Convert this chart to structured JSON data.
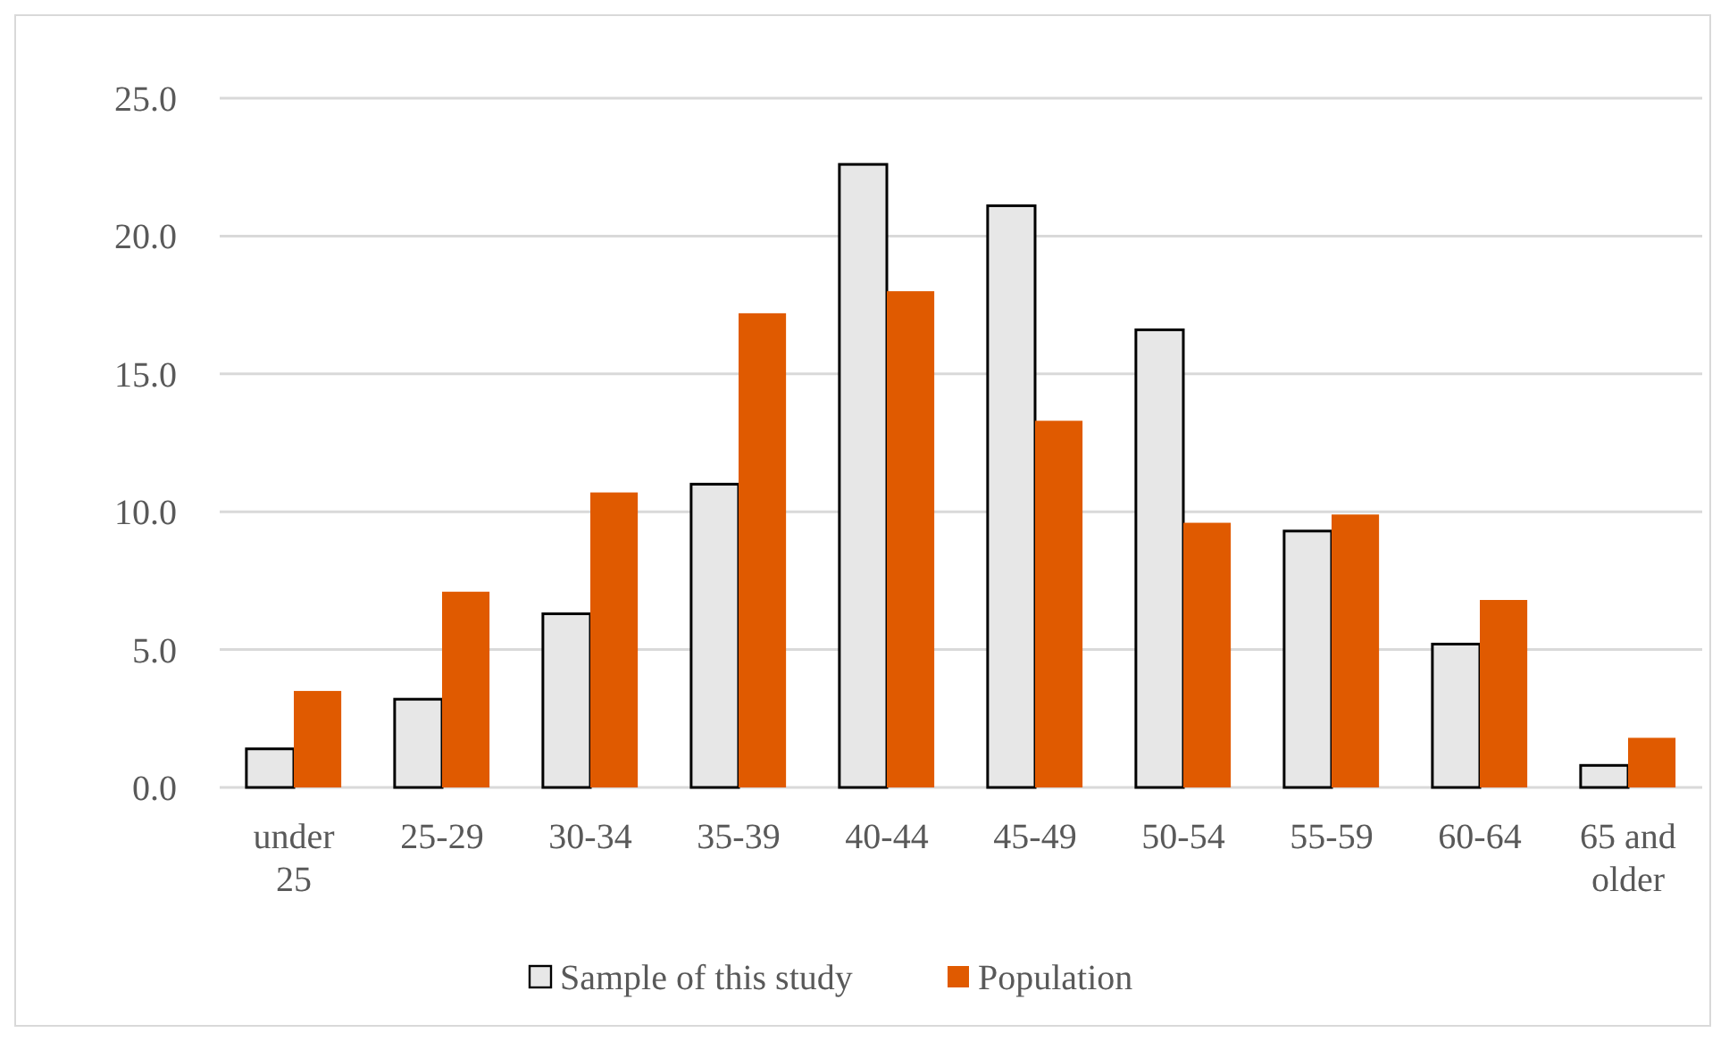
{
  "chart_data": {
    "type": "bar",
    "categories": [
      "under 25",
      "25-29",
      "30-34",
      "35-39",
      "40-44",
      "45-49",
      "50-54",
      "55-59",
      "60-64",
      "65 and older"
    ],
    "series": [
      {
        "name": "Sample of this study",
        "color": "#e7e7e7",
        "values": [
          1.4,
          3.2,
          6.3,
          11.0,
          22.6,
          21.1,
          16.6,
          9.3,
          5.2,
          0.8
        ]
      },
      {
        "name": "Population",
        "color": "#e05a00",
        "values": [
          3.5,
          7.1,
          10.7,
          17.2,
          18.0,
          13.3,
          9.6,
          9.9,
          6.8,
          1.8
        ]
      }
    ],
    "ylim": [
      0,
      25
    ],
    "yticks": [
      {
        "value": 0,
        "label": "0.0"
      },
      {
        "value": 5,
        "label": "5.0"
      },
      {
        "value": 10,
        "label": "10.0"
      },
      {
        "value": 15,
        "label": "15.0"
      },
      {
        "value": 20,
        "label": "20.0"
      },
      {
        "value": 25,
        "label": "25.0"
      }
    ],
    "grid": "y",
    "legend": "bottom"
  }
}
